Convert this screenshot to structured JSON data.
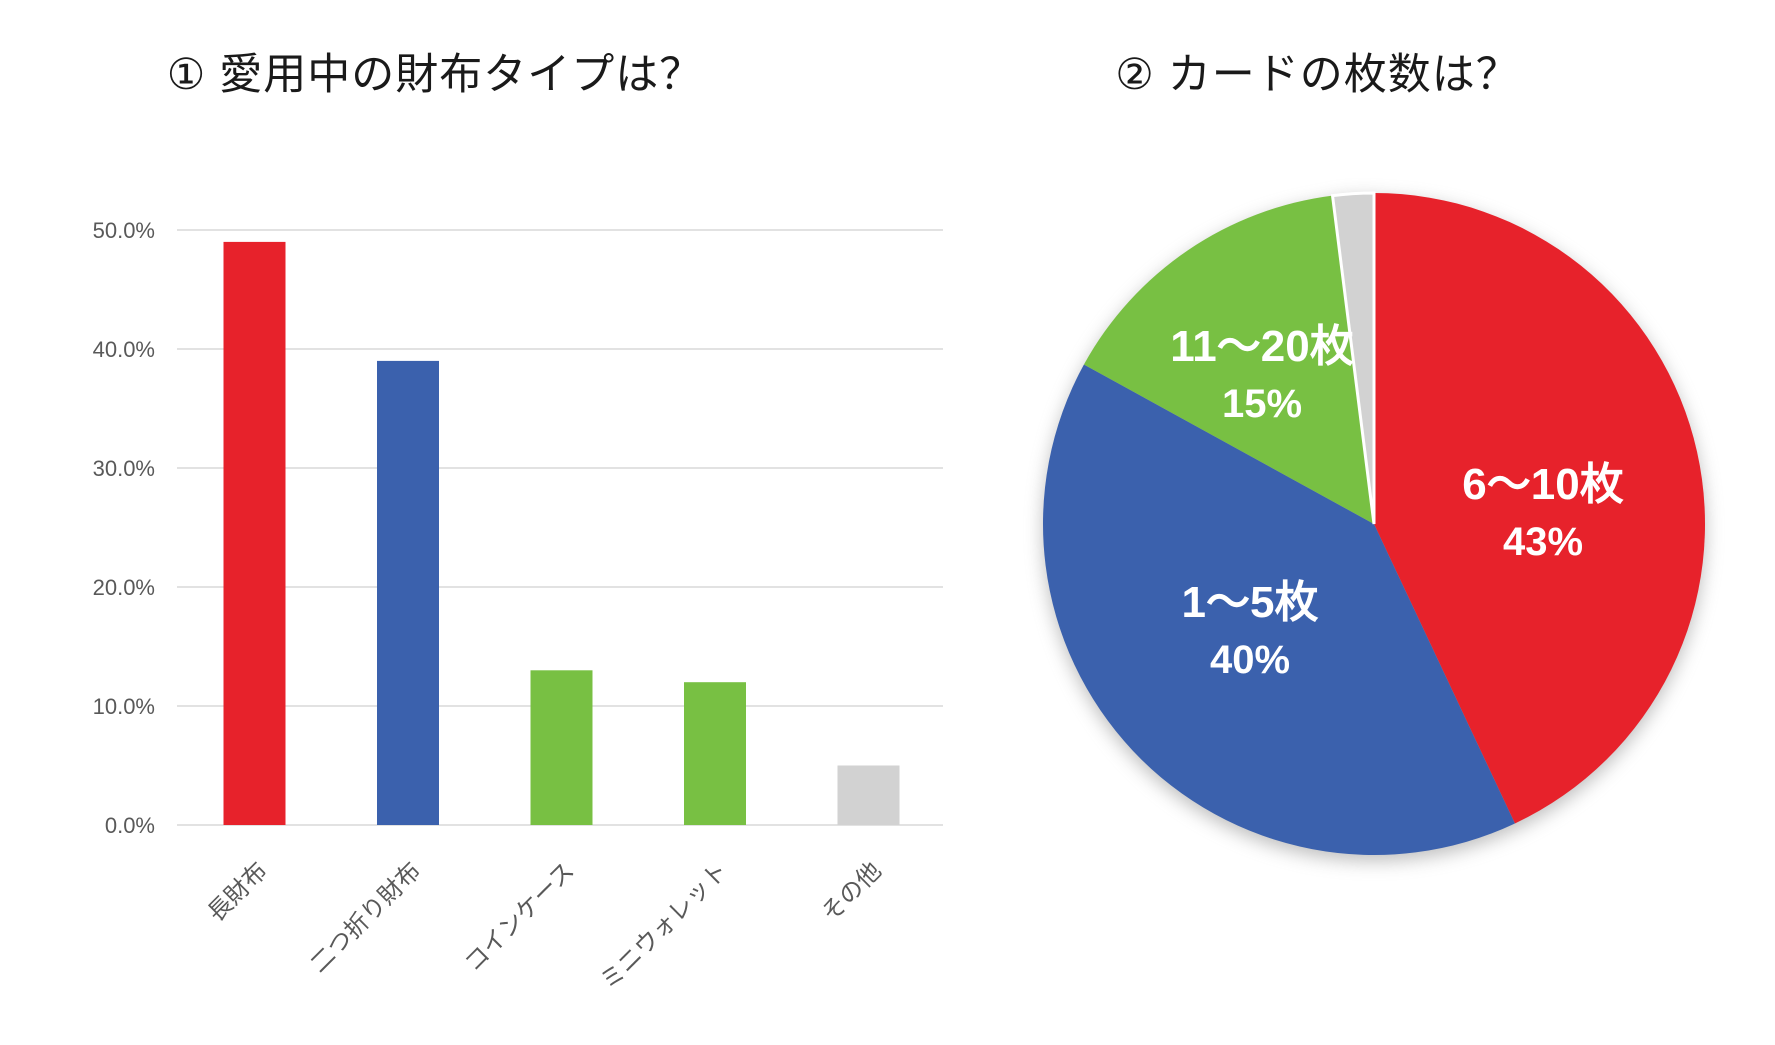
{
  "page": {
    "background": "#ffffff",
    "text_color": "#1a1a1a",
    "axis_text_color": "#595959",
    "grid_color": "#d9d9d9"
  },
  "chart_data": [
    {
      "type": "bar",
      "title": "① 愛用中の財布タイプは？",
      "categories": [
        "長財布",
        "二つ折り財布",
        "コインケース",
        "ミニウォレット",
        "その他"
      ],
      "values": [
        49,
        39,
        13,
        12,
        5
      ],
      "value_unit": "%",
      "bar_colors": [
        "#e7222b",
        "#3b61ad",
        "#78c043",
        "#78c043",
        "#d2d2d2"
      ],
      "ylim": [
        0,
        50
      ],
      "ytick_step": 10,
      "ytick_labels": [
        "0.0%",
        "10.0%",
        "20.0%",
        "30.0%",
        "40.0%",
        "50.0%"
      ],
      "grid": true,
      "xlabel": "",
      "ylabel": "",
      "legend": "none",
      "category_label_rotation_deg": -45
    },
    {
      "type": "pie",
      "title": "② カードの枚数は？",
      "slices": [
        {
          "label": "6～10枚",
          "value": 43,
          "pct_text": "43%",
          "color": "#e7222b",
          "label_offset": [
            169,
            -12
          ]
        },
        {
          "label": "1～5枚",
          "value": 40,
          "pct_text": "40%",
          "color": "#3b61ad",
          "label_offset": [
            -124,
            106
          ]
        },
        {
          "label": "11～20枚",
          "value": 15,
          "pct_text": "15%",
          "color": "#78c043",
          "label_offset": [
            -112,
            -150
          ]
        },
        {
          "label": "",
          "value": 2,
          "pct_text": "",
          "color": "#d2d2d2",
          "label_offset": [
            0,
            0
          ]
        }
      ],
      "start_angle_deg": 0,
      "direction": "clockwise",
      "label_text_color": "#ffffff",
      "legend": "none"
    }
  ]
}
